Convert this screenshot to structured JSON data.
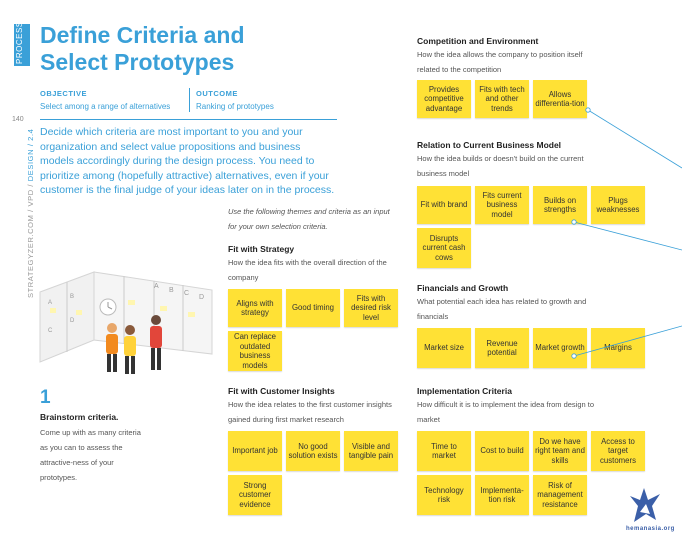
{
  "sidebar": {
    "tab": "PROCESS",
    "page_number": "140",
    "spine_prefix": "STRATEGYZER.COM / VPD / ",
    "spine_section": "DESIGN / 2.4"
  },
  "title": {
    "line1": "Define Criteria and",
    "line2": "Select Prototypes"
  },
  "objective": {
    "label": "OBJECTIVE",
    "text": "Select among a range of alternatives"
  },
  "outcome": {
    "label": "OUTCOME",
    "text": "Ranking of prototypes"
  },
  "intro": "Decide which criteria are most important to you and your organization and select value propositions and business models accordingly during the design process. You need to prioritize among (hopefully attractive) alternatives, even if your customer is the final judge of your ideas later on in the process.",
  "hint": "Use the following themes and criteria as an input for your own selection criteria.",
  "step": {
    "number": "1",
    "title": "Brainstorm criteria.",
    "text": "Come up with as many criteria as you can to assess the attractive-ness of your prototypes."
  },
  "illustration": {
    "board1_labels": [
      "A",
      "B",
      "C",
      "D"
    ],
    "board2_labels": [
      "A",
      "B",
      "C",
      "D"
    ]
  },
  "sections": {
    "strategy": {
      "title": "Fit with Strategy",
      "desc": "How the idea fits with the overall direction of the company",
      "notes": [
        "Aligns with strategy",
        "Good timing",
        "Fits with desired risk level",
        "Can replace outdated business models"
      ]
    },
    "insights": {
      "title": "Fit with Customer Insights",
      "desc": "How the idea relates to the first customer insights gained during first market research",
      "notes": [
        "Important job",
        "No good solution exists",
        "Visible and tangible pain",
        "Strong customer evidence"
      ]
    },
    "competition": {
      "title": "Competition and Environment",
      "desc": "How the idea allows the company to position itself related to the competition",
      "notes": [
        "Provides competitive advantage",
        "Fits with tech and other trends",
        "Allows differentia-tion"
      ]
    },
    "business_model": {
      "title": "Relation to Current Business Model",
      "desc": "How the idea builds or doesn't build on the current business model",
      "notes": [
        "Fit with brand",
        "Fits current business model",
        "Builds on strengths",
        "Plugs weaknesses",
        "Disrupts current cash cows"
      ]
    },
    "financials": {
      "title": "Financials and Growth",
      "desc": "What potential each idea has related to growth and financials",
      "notes": [
        "Market size",
        "Revenue potential",
        "Market growth",
        "Margins"
      ]
    },
    "implementation": {
      "title": "Implementation Criteria",
      "desc": "How difficult it is to implement the idea from design to market",
      "notes": [
        "Time to market",
        "Cost to build",
        "Do we have right team and skills",
        "Access to target customers",
        "Technology risk",
        "Implementa-tion risk",
        "Risk of management resistance"
      ]
    }
  },
  "logo": {
    "text": "hemanasia.org"
  },
  "colors": {
    "accent": "#3aa0d8",
    "sticky": "#ffe135",
    "text": "#333333"
  }
}
